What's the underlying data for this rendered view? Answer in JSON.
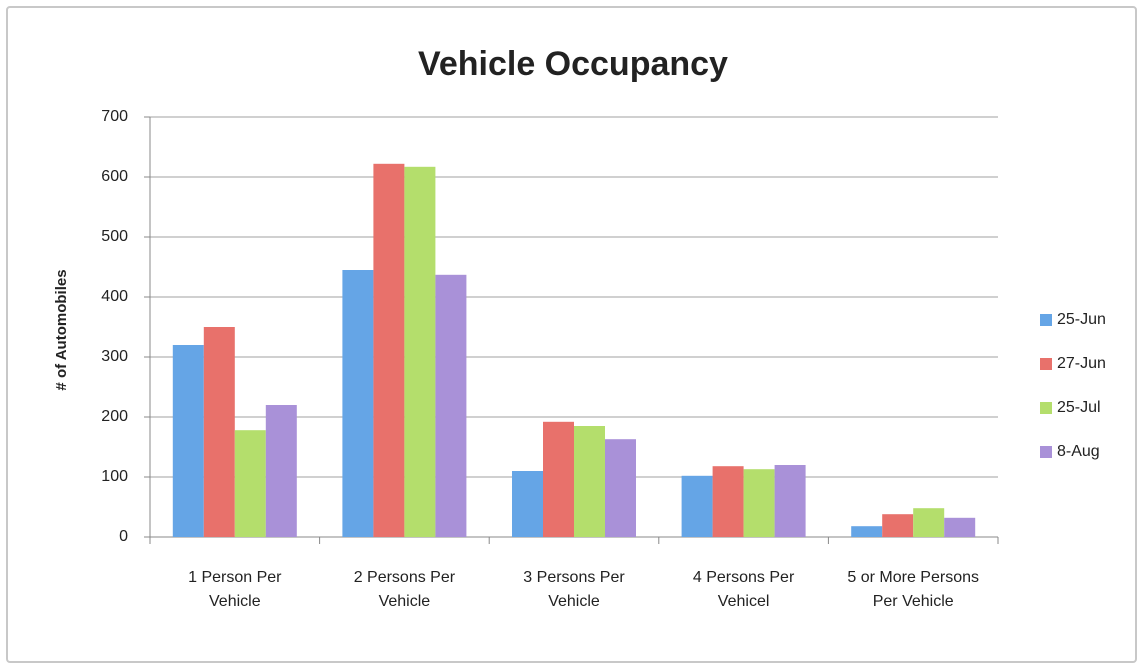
{
  "chart_data": {
    "type": "bar",
    "title": "Vehicle Occupancy",
    "y_label": "# of Automobiles",
    "categories": [
      "1 Person Per Vehicle",
      "2 Persons Per Vehicle",
      "3 Persons Per Vehicle",
      "4 Persons Per Vehicel",
      "5 or More Persons Per Vehicle"
    ],
    "series": [
      {
        "name": "25-Jun",
        "color": "#65a5e6",
        "values": [
          320,
          445,
          110,
          102,
          18
        ]
      },
      {
        "name": "27-Jun",
        "color": "#e8716b",
        "values": [
          350,
          622,
          192,
          118,
          38
        ]
      },
      {
        "name": "25-Jul",
        "color": "#b4de6c",
        "values": [
          178,
          617,
          185,
          113,
          48
        ]
      },
      {
        "name": "8-Aug",
        "color": "#a991d8",
        "values": [
          220,
          437,
          163,
          120,
          32
        ]
      }
    ],
    "ylim": [
      0,
      700
    ],
    "yticks": [
      0,
      100,
      200,
      300,
      400,
      500,
      600,
      700
    ],
    "grid": true,
    "legend": "right"
  }
}
